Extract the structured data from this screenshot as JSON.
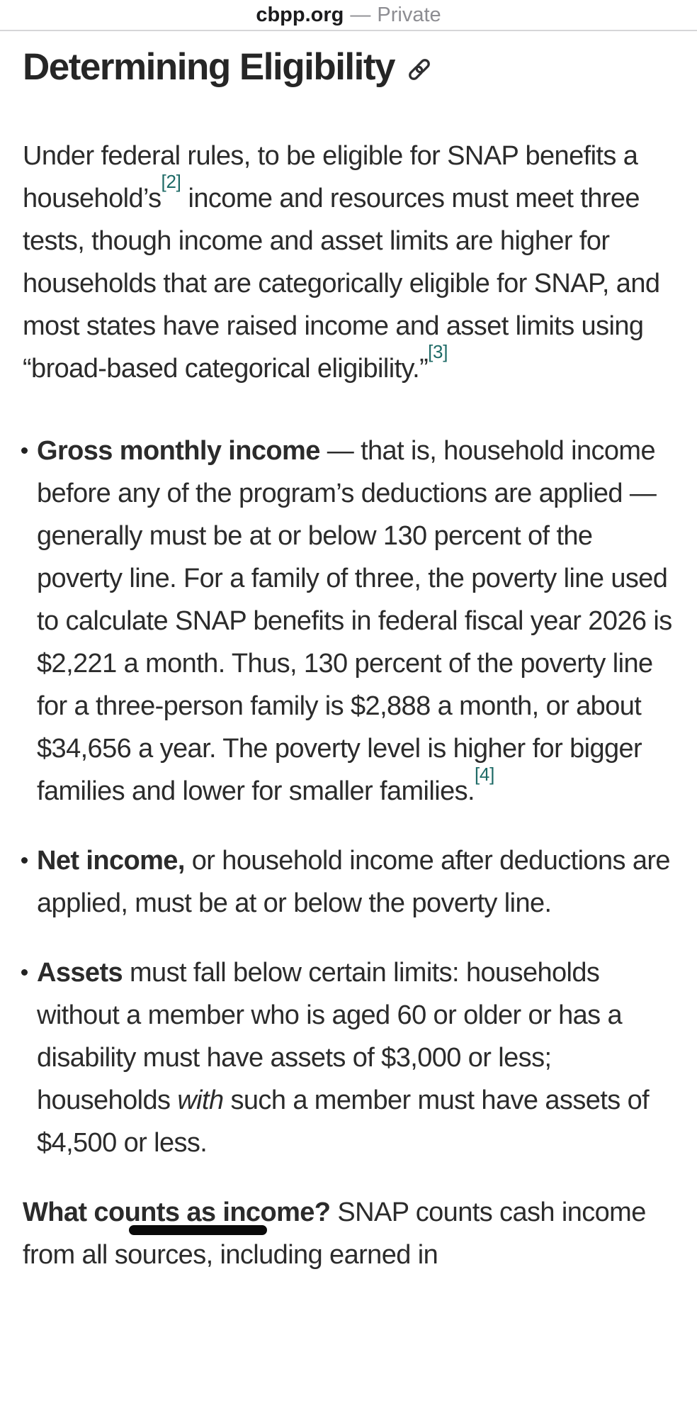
{
  "browser_bar": {
    "domain": "cbpp.org",
    "separator": "—",
    "privacy_label": "Private"
  },
  "article": {
    "title": "Determining Eligibility",
    "intro": [
      {
        "type": "n",
        "text": "Under federal rules, to be eligible for SNAP benefits a household’s"
      },
      {
        "type": "sup",
        "text": "[2]"
      },
      {
        "type": "n",
        "text": " income and resources must meet three tests, though income and asset limits are higher for households that are categorically eligible for SNAP, and most states have raised income and asset limits using “broad-based categorical eligibility.”"
      },
      {
        "type": "sup",
        "text": "[3]"
      }
    ],
    "bullets": [
      [
        {
          "type": "b",
          "text": "Gross monthly income"
        },
        {
          "type": "n",
          "text": " — that is, household income before any of the program’s deductions are applied — generally must be at or below 130 percent of the poverty line. For a family of three, the poverty line used to calculate SNAP benefits in federal fiscal year 2026 is $2,221 a month. Thus, 130 percent of the poverty line for a three-person family is $2,888 a month, or about $34,656 a year. The poverty level is higher for bigger families and lower for smaller families."
        },
        {
          "type": "sup",
          "text": "[4]"
        }
      ],
      [
        {
          "type": "b",
          "text": "Net income,"
        },
        {
          "type": "n",
          "text": " or household income after deductions are applied, must be at or below the poverty line."
        }
      ],
      [
        {
          "type": "b",
          "text": "Assets"
        },
        {
          "type": "n",
          "text": " must fall below certain limits: households without a member who is aged 60 or older or has a disability must have assets of $3,000 or less; households "
        },
        {
          "type": "i",
          "text": "with"
        },
        {
          "type": "n",
          "text": " such a member must have assets of $4,500 or less."
        }
      ]
    ],
    "outro": [
      {
        "type": "b",
        "text": "What counts as income?"
      },
      {
        "type": "n",
        "text": " SNAP counts cash income from all sources, including earned in"
      }
    ]
  },
  "icons": {
    "title_link": "link-icon"
  },
  "colors": {
    "body_text": "#2b2b2b",
    "footnote_link": "#1e6a66",
    "address_bar_domain": "#1b1b1d",
    "address_bar_private": "#8d8d92",
    "divider": "#d6d6d8",
    "underline_marker": "#0a0a0a"
  }
}
